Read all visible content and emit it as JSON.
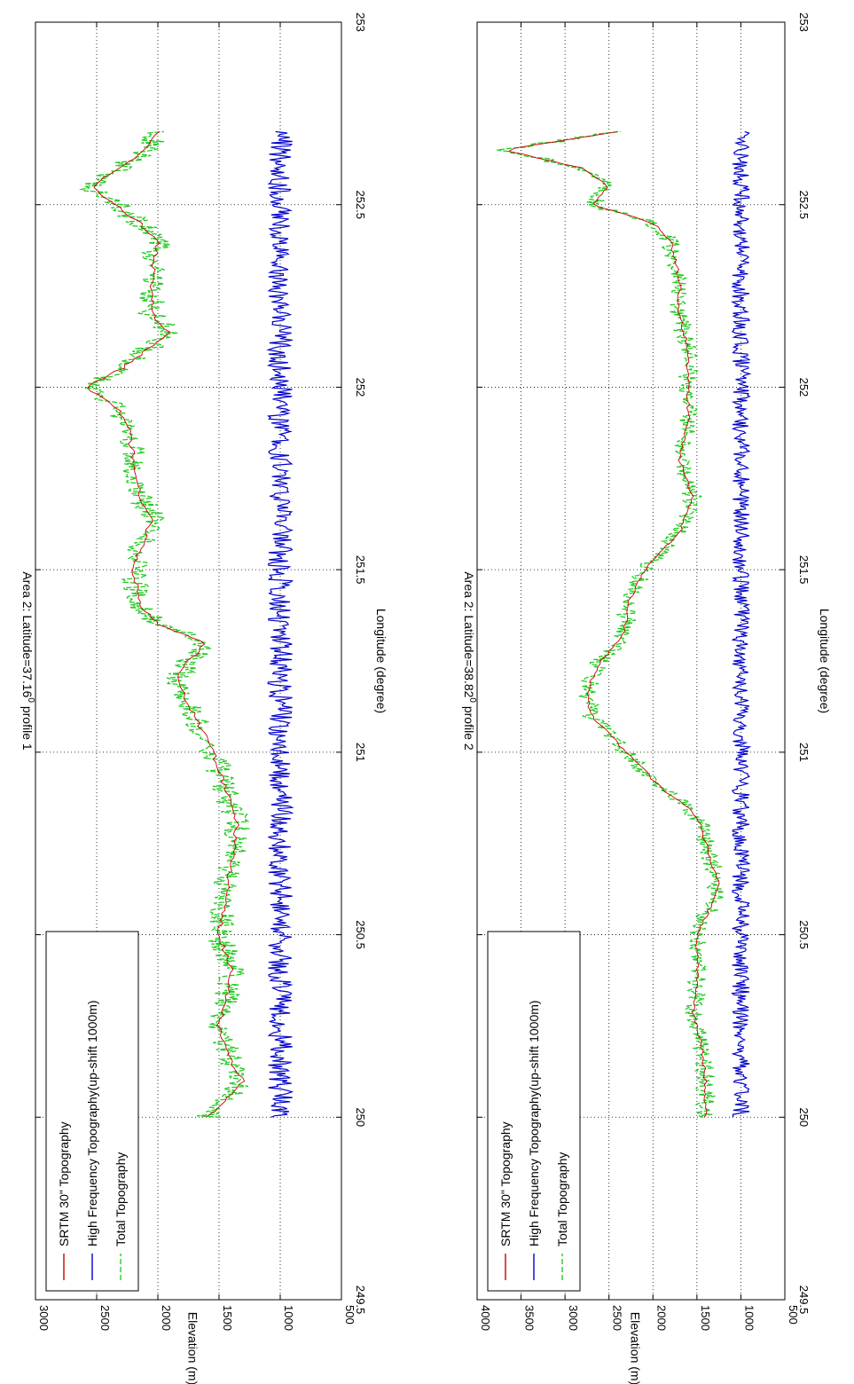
{
  "chart_data": [
    {
      "type": "line",
      "title": "Area 2: Latitude=37.16",
      "title_sup": "0",
      "title_suffix": " profile 1",
      "xlabel": "Longitude (degree)",
      "ylabel": "Elevation (m)",
      "xlim": [
        249.5,
        253
      ],
      "ylim": [
        500,
        3000
      ],
      "xticks": [
        "249.5",
        "250",
        "250.5",
        "251",
        "251.5",
        "252",
        "252.5",
        "253"
      ],
      "yticks": [
        "500",
        "1000",
        "1500",
        "2000",
        "2500",
        "3000"
      ],
      "grid": true,
      "legend_position": "bottom-left (plot rotated 90°)",
      "series": [
        {
          "name": "SRTM 30\" Topography",
          "color": "#cc0000",
          "style": "solid",
          "x": [
            250.0,
            250.05,
            250.1,
            250.15,
            250.2,
            250.25,
            250.3,
            250.4,
            250.5,
            250.6,
            250.7,
            250.8,
            250.9,
            251.0,
            251.1,
            251.2,
            251.25,
            251.3,
            251.35,
            251.4,
            251.5,
            251.6,
            251.65,
            251.7,
            251.8,
            251.9,
            251.95,
            252.0,
            252.05,
            252.1,
            252.15,
            252.2,
            252.3,
            252.4,
            252.45,
            252.5,
            252.55,
            252.6,
            252.65,
            252.7
          ],
          "y": [
            1600,
            1450,
            1300,
            1400,
            1450,
            1500,
            1450,
            1400,
            1500,
            1450,
            1400,
            1350,
            1450,
            1550,
            1700,
            1850,
            1750,
            1600,
            2000,
            2150,
            2200,
            2100,
            2050,
            2150,
            2200,
            2250,
            2350,
            2600,
            2300,
            2100,
            1900,
            2050,
            2050,
            2000,
            2150,
            2350,
            2550,
            2300,
            2100,
            2000
          ]
        },
        {
          "name": "High Frequency Topography(up-shift 1000m)",
          "color": "#0000cc",
          "style": "solid",
          "x": [
            250.0,
            250.7
          ],
          "y": [
            1000,
            1000
          ]
        },
        {
          "name": "Total Topography",
          "color": "#22cc22",
          "style": "dashed",
          "x": [
            250.0,
            250.05,
            250.1,
            250.15,
            250.2,
            250.25,
            250.3,
            250.4,
            250.5,
            250.6,
            250.7,
            250.8,
            250.9,
            251.0,
            251.1,
            251.2,
            251.25,
            251.3,
            251.35,
            251.4,
            251.5,
            251.6,
            251.65,
            251.7,
            251.8,
            251.9,
            251.95,
            252.0,
            252.05,
            252.1,
            252.15,
            252.2,
            252.3,
            252.4,
            252.45,
            252.5,
            252.55,
            252.6,
            252.65,
            252.7
          ],
          "y": [
            1600,
            1450,
            1300,
            1400,
            1450,
            1500,
            1450,
            1400,
            1500,
            1450,
            1400,
            1350,
            1450,
            1550,
            1700,
            1850,
            1750,
            1600,
            2000,
            2150,
            2200,
            2100,
            2050,
            2150,
            2200,
            2250,
            2350,
            2600,
            2300,
            2100,
            1900,
            2050,
            2050,
            2000,
            2150,
            2350,
            2550,
            2300,
            2100,
            2000
          ]
        }
      ]
    },
    {
      "type": "line",
      "title": "Area 2: Latitude=38.82",
      "title_sup": "0",
      "title_suffix": " profile 2",
      "xlabel": "Longitude (degree)",
      "ylabel": "Elevation (m)",
      "xlim": [
        249.5,
        253
      ],
      "ylim": [
        500,
        4000
      ],
      "xticks": [
        "249.5",
        "250",
        "250.5",
        "251",
        "251.5",
        "252",
        "252.5",
        "253"
      ],
      "yticks": [
        "500",
        "1000",
        "1500",
        "2000",
        "2500",
        "3000",
        "3500",
        "4000"
      ],
      "grid": true,
      "legend_position": "bottom-left (plot rotated 90°)",
      "series": [
        {
          "name": "SRTM 30\" Topography",
          "color": "#cc0000",
          "style": "solid",
          "x": [
            250.0,
            250.1,
            250.2,
            250.3,
            250.35,
            250.4,
            250.5,
            250.6,
            250.65,
            250.7,
            250.8,
            250.85,
            250.9,
            251.0,
            251.05,
            251.1,
            251.15,
            251.2,
            251.25,
            251.3,
            251.35,
            251.4,
            251.5,
            251.6,
            251.7,
            251.8,
            251.9,
            252.0,
            252.1,
            252.2,
            252.3,
            252.4,
            252.45,
            252.5,
            252.55,
            252.6,
            252.65,
            252.7
          ],
          "y": [
            1400,
            1400,
            1450,
            1550,
            1500,
            1500,
            1500,
            1300,
            1250,
            1350,
            1450,
            1600,
            1900,
            2300,
            2500,
            2700,
            2750,
            2700,
            2600,
            2400,
            2300,
            2300,
            2100,
            1700,
            1550,
            1700,
            1600,
            1600,
            1600,
            1700,
            1700,
            1800,
            2000,
            2700,
            2500,
            2800,
            3700,
            2400
          ]
        },
        {
          "name": "High Frequency Topography(up-shift 1000m)",
          "color": "#0000cc",
          "style": "solid",
          "x": [
            250.0,
            250.7
          ],
          "y": [
            1000,
            1000
          ]
        },
        {
          "name": "Total Topography",
          "color": "#22cc22",
          "style": "dashed",
          "x": [
            250.0,
            250.1,
            250.2,
            250.3,
            250.35,
            250.4,
            250.5,
            250.6,
            250.65,
            250.7,
            250.8,
            250.85,
            250.9,
            251.0,
            251.05,
            251.1,
            251.15,
            251.2,
            251.25,
            251.3,
            251.35,
            251.4,
            251.5,
            251.6,
            251.7,
            251.8,
            251.9,
            252.0,
            252.1,
            252.2,
            252.3,
            252.4,
            252.45,
            252.5,
            252.55,
            252.6,
            252.65,
            252.7
          ],
          "y": [
            1400,
            1400,
            1450,
            1550,
            1500,
            1500,
            1500,
            1300,
            1250,
            1350,
            1450,
            1600,
            1900,
            2300,
            2500,
            2700,
            2750,
            2700,
            2600,
            2400,
            2300,
            2300,
            2100,
            1700,
            1550,
            1700,
            1600,
            1600,
            1600,
            1700,
            1700,
            1800,
            2000,
            2700,
            2500,
            2800,
            3700,
            2400
          ]
        }
      ]
    }
  ]
}
